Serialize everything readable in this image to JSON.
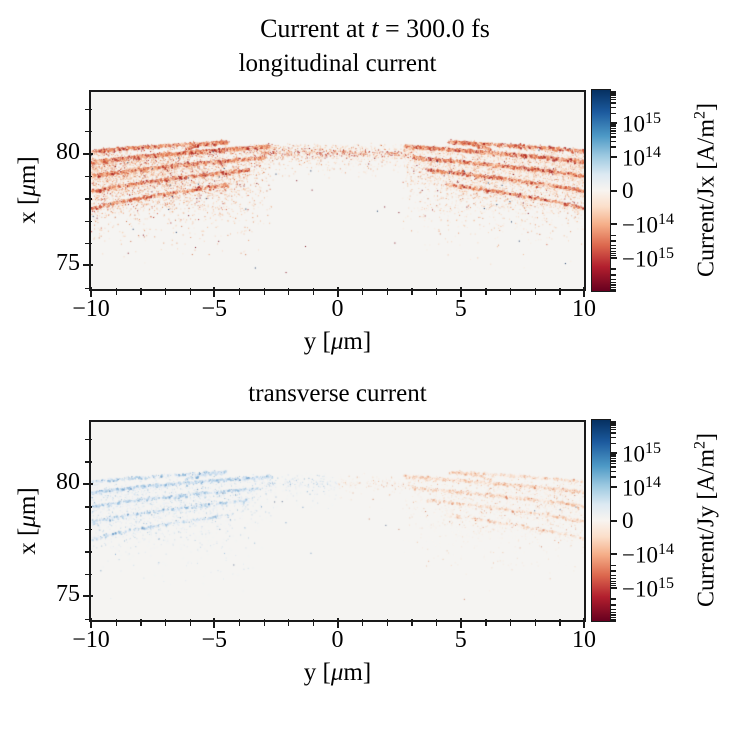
{
  "title": {
    "pre": "Current at ",
    "var": "t",
    "post": " = 300.0 fs"
  },
  "chart_data": {
    "type": "heatmap",
    "suptitle": "Current at t = 300.0 fs",
    "xlabel_parts": {
      "pre": "y [",
      "mu": "μ",
      "post": "m]"
    },
    "ylabel_parts": {
      "pre": "x [",
      "mu": "μ",
      "post": "m]"
    },
    "xlim": [
      -10,
      10
    ],
    "ylim": [
      73.95,
      82.75
    ],
    "xticks": [
      -10,
      -5,
      0,
      5,
      10
    ],
    "xtick_labels": [
      "−10",
      "−5",
      "0",
      "5",
      "10"
    ],
    "xminor": [
      -9,
      -8,
      -7,
      -6,
      -4,
      -3,
      -2,
      -1,
      1,
      2,
      3,
      4,
      6,
      7,
      8,
      9
    ],
    "yticks": [
      75,
      80
    ],
    "ytick_labels": [
      "75",
      "80"
    ],
    "yminor": [
      74,
      76,
      77,
      78,
      79,
      81,
      82
    ],
    "panels": [
      {
        "title": "longitudinal current",
        "cbar_label_parts": {
          "pre": "Current/Jx [A/m",
          "sup": "2",
          "end": "]"
        },
        "description": "2D map of longitudinal current density Jx(y,x): red (negative, ~-1e14 to -1e15 A/m^2) wakefield arc bands curving up from the outer edges toward y=0 near x=79-80.5 um, diffuse red speckle below down to x~74 um"
      },
      {
        "title": "transverse current",
        "cbar_label_parts": {
          "pre": "Current/Jy [A/m",
          "sup": "2",
          "end": "]"
        },
        "description": "2D map of transverse current density Jy(y,x): same arc geometry but faint; bluish (positive) speckle for y<0, orange (negative) speckle for y>0"
      }
    ],
    "colorbar": {
      "scale": "symlog",
      "linthresh": 100000000000000.0,
      "vmax": 1e+16,
      "vmin": -1e+16,
      "cmap": "RdBu",
      "ticks": [
        {
          "v": 1000000000000000.0,
          "neg": false,
          "mant": "10",
          "exp": "15"
        },
        {
          "v": 100000000000000.0,
          "neg": false,
          "mant": "10",
          "exp": "14"
        },
        {
          "v": 0,
          "text": "0"
        },
        {
          "v": -100000000000000.0,
          "neg": true,
          "mant": "10",
          "exp": "14"
        },
        {
          "v": -1000000000000000.0,
          "neg": true,
          "mant": "10",
          "exp": "15"
        }
      ],
      "minus": "−",
      "minor_mantissas": [
        2,
        3,
        4,
        5,
        6,
        7,
        8,
        9
      ],
      "minor_exps": [
        14,
        15
      ],
      "gradient": [
        {
          "p": 0,
          "c": "#053061"
        },
        {
          "p": 11,
          "c": "#1c5a9e"
        },
        {
          "p": 23,
          "c": "#4e9ac6"
        },
        {
          "p": 33,
          "c": "#9ecae1"
        },
        {
          "p": 42,
          "c": "#dce9f2"
        },
        {
          "p": 50,
          "c": "#f8f4f0"
        },
        {
          "p": 58,
          "c": "#fbdfca"
        },
        {
          "p": 67,
          "c": "#f5ae88"
        },
        {
          "p": 77,
          "c": "#dd6a4f"
        },
        {
          "p": 88,
          "c": "#b21f2e"
        },
        {
          "p": 100,
          "c": "#67001f"
        }
      ]
    },
    "render": {
      "seed": 1337,
      "bg": "#f5f4f2",
      "arcs": [
        {
          "xo": 80.05,
          "xi": 80.55,
          "yi": 4.5,
          "n": 650,
          "hook": 0.32
        },
        {
          "xo": 79.55,
          "xi": 80.35,
          "yi": 2.7,
          "n": 1500,
          "hook": 0
        },
        {
          "xo": 78.9,
          "xi": 79.85,
          "yi": 3.0,
          "n": 1050,
          "hook": 0
        },
        {
          "xo": 78.2,
          "xi": 79.3,
          "yi": 3.6,
          "n": 750,
          "hook": 0
        },
        {
          "xo": 77.4,
          "xi": 78.65,
          "yi": 4.4,
          "n": 500,
          "hook": 0
        }
      ],
      "panels": [
        {
          "alpha": 0.92,
          "scale_n": 1.0,
          "cloud_n": 5200,
          "center_n": 800,
          "band_n": 400,
          "left_main": [
            "#fbe0cd",
            "#f6bf9d",
            "#ea8f63",
            "#d05436",
            "#a82323"
          ],
          "right_main": [
            "#fbe0cd",
            "#f6bf9d",
            "#ea8f63",
            "#d05436",
            "#a82323"
          ],
          "left_soft": [
            "#fcead e",
            "#f9d6bd",
            "#f3b893",
            "#e49468",
            "#cc6a42"
          ],
          "right_soft": [
            "#fceade",
            "#f9d6bd",
            "#f3b893",
            "#e49468",
            "#cc6a42"
          ],
          "w_main": [
            0.16,
            0.22,
            0.26,
            0.21,
            0.15
          ],
          "w_soft": [
            0.45,
            0.3,
            0.15,
            0.07,
            0.03
          ],
          "darks": [
            {
              "n": 55,
              "color": "#7e1120",
              "side": 0
            },
            {
              "n": 35,
              "color": "#10315f",
              "side": 0
            }
          ]
        },
        {
          "alpha": 0.62,
          "scale_n": 0.5,
          "cloud_n": 2600,
          "center_n": 300,
          "band_n": 150,
          "left_main": [
            "#eaf1f8",
            "#cfe1f0",
            "#a8cbe5",
            "#76aad4",
            "#3d7ab8"
          ],
          "right_main": [
            "#fdf2ea",
            "#f9e0cf",
            "#f3c3a5",
            "#e99c72",
            "#d4693f"
          ],
          "left_soft": [
            "#eef4fa",
            "#d9e7f3",
            "#bcd6ea",
            "#93bcdd",
            "#639ac8"
          ],
          "right_soft": [
            "#fdf5ef",
            "#fae6d8",
            "#f5ceb2",
            "#edad84",
            "#dd7f52"
          ],
          "w_main": [
            0.3,
            0.3,
            0.22,
            0.13,
            0.05
          ],
          "w_soft": [
            0.48,
            0.3,
            0.13,
            0.06,
            0.03
          ],
          "darks": [
            {
              "n": 22,
              "color": "#3c76ae",
              "side": -1
            },
            {
              "n": 18,
              "color": "#c05a30",
              "side": 1
            },
            {
              "n": 8,
              "color": "#14325e",
              "side": 0
            }
          ]
        }
      ]
    }
  }
}
